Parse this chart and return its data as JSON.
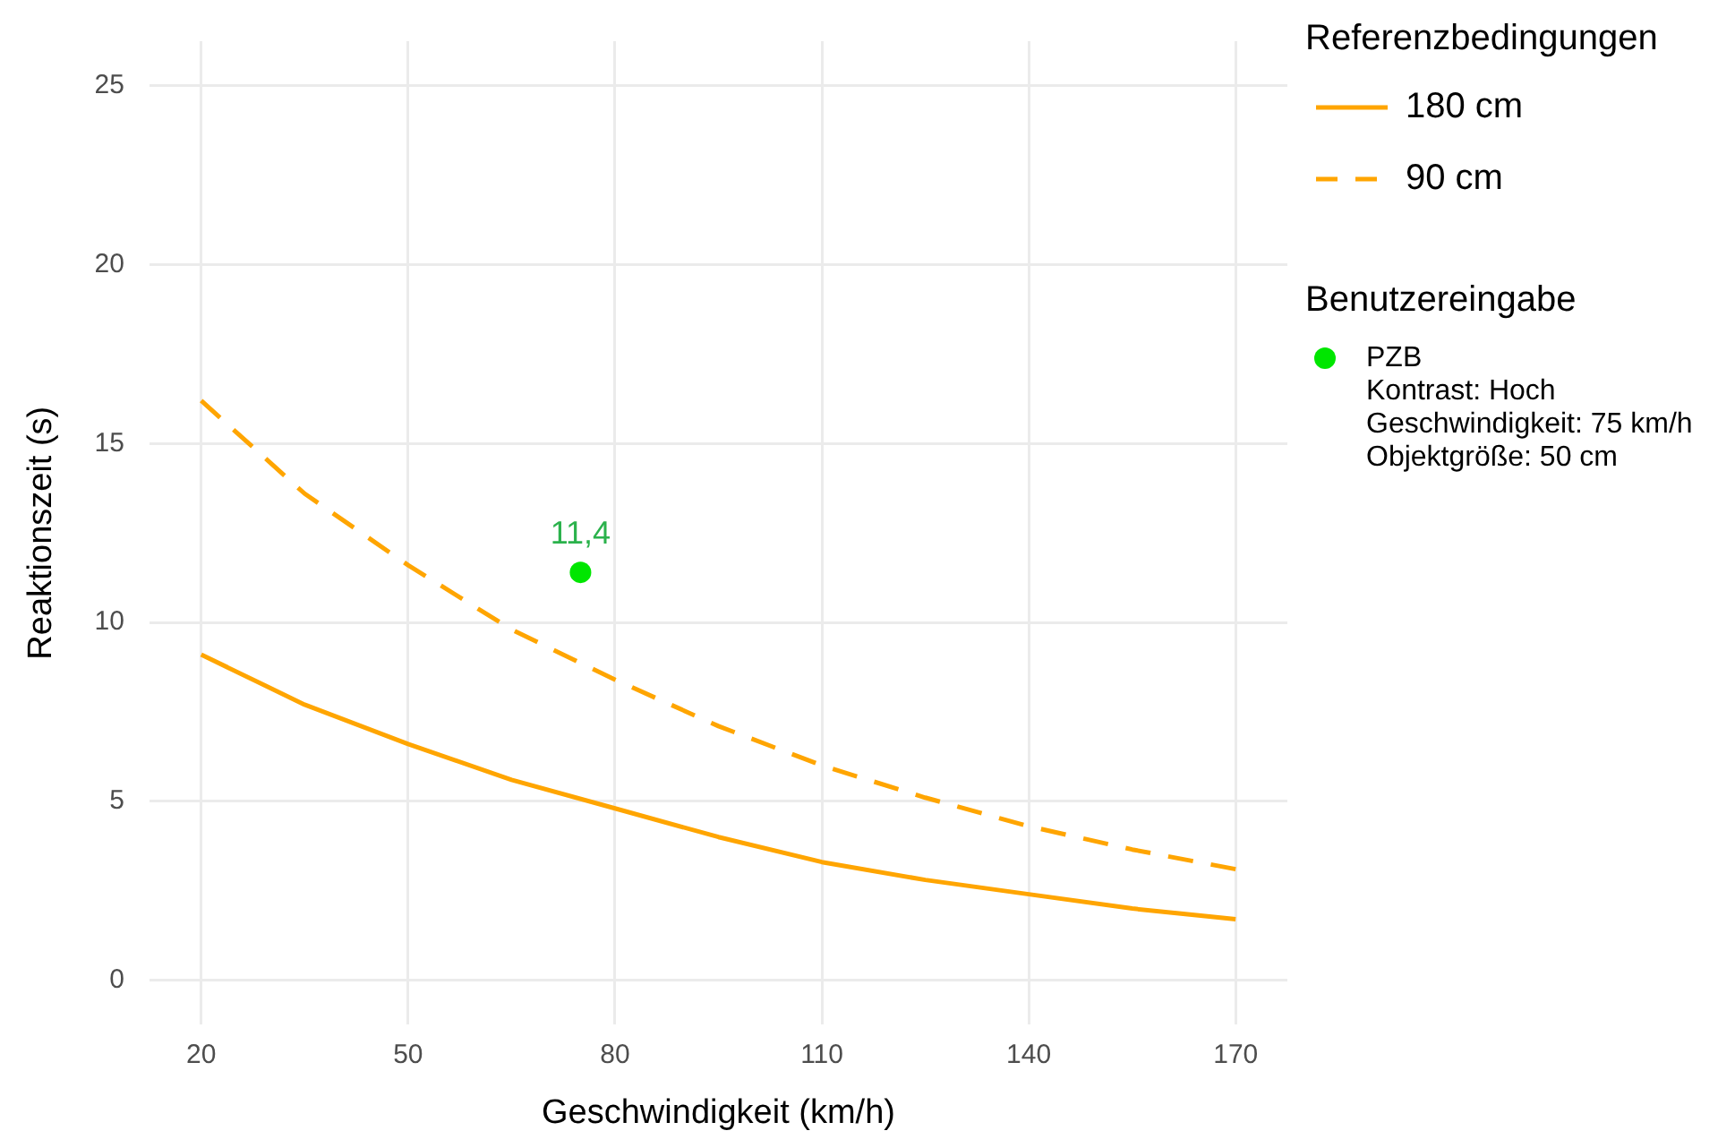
{
  "chart_data": {
    "type": "line",
    "xlabel": "Geschwindigkeit (km/h)",
    "ylabel": "Reaktionszeit (s)",
    "legend_title": "Referenzbedingungen",
    "legend": "right",
    "grid": true,
    "marker": "none",
    "xlim": [
      12.5,
      177.5
    ],
    "ylim": [
      -1.25,
      26.25
    ],
    "xticks": [
      20,
      50,
      80,
      110,
      140,
      170
    ],
    "yticks": [
      0,
      5,
      10,
      15,
      20,
      25
    ],
    "series": [
      {
        "name": "180 cm",
        "color": "#ffa500",
        "line_style": "solid",
        "x": [
          20,
          35,
          50,
          65,
          80,
          95,
          110,
          125,
          140,
          155,
          170
        ],
        "values": [
          9.1,
          7.7,
          6.6,
          5.6,
          4.8,
          4.0,
          3.3,
          2.8,
          2.4,
          2.0,
          1.7
        ]
      },
      {
        "name": "90 cm",
        "color": "#ffa500",
        "line_style": "dashed",
        "x": [
          20,
          35,
          50,
          65,
          80,
          95,
          110,
          125,
          140,
          155,
          170
        ],
        "values": [
          16.2,
          13.6,
          11.6,
          9.8,
          8.4,
          7.1,
          6.0,
          5.1,
          4.3,
          3.65,
          3.1
        ]
      },
      {
        "name": "PZB\nKontrast: Hoch\nGeschwindigkeit: 75 km/h\nObjektgröße: 50 cm",
        "type": "scatter",
        "marker": "circle",
        "color": "#00e600",
        "x": [
          75
        ],
        "values": [
          11.4
        ],
        "value_labels": [
          "11,4"
        ]
      }
    ],
    "annotations": [
      "Benutzereingabe"
    ]
  }
}
